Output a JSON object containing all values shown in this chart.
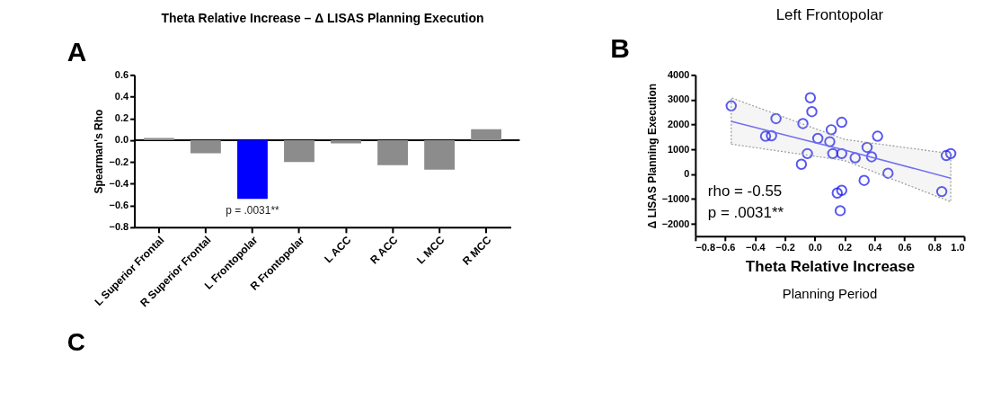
{
  "chart_data": [
    {
      "type": "bar",
      "title": "Theta Relative Increase – Δ LISAS Planning Execution",
      "ylabel": "Spearman's Rho",
      "categories": [
        "L Superior Frontal",
        "R Superior Frontal",
        "L Frontopolar",
        "R Frontopolar",
        "L ACC",
        "R ACC",
        "L MCC",
        "R MCC"
      ],
      "values": [
        0.02,
        -0.12,
        -0.54,
        -0.2,
        -0.03,
        -0.23,
        -0.27,
        0.1
      ],
      "colors": [
        "#8c8c8c",
        "#8c8c8c",
        "#0000ff",
        "#8c8c8c",
        "#8c8c8c",
        "#8c8c8c",
        "#8c8c8c",
        "#8c8c8c"
      ],
      "ylim": [
        -0.8,
        0.6
      ],
      "yticks": [
        -0.8,
        -0.6,
        -0.4,
        -0.2,
        {
          "value": 0,
          "label": "0.0"
        },
        0.2,
        0.4,
        0.6
      ],
      "ref_lines": [
        {
          "axis": "y",
          "value": 0,
          "color": "#000000"
        }
      ],
      "annotations": [
        "A",
        {
          "text": "p = .0031**",
          "x": "L Frontopolar",
          "y": -0.54
        },
        "C"
      ],
      "grid": false
    },
    {
      "type": "scatter",
      "title": "Left Frontopolar",
      "xlabel": "Theta Relative Increase",
      "ylabel": "Δ LISAS Planning Execution",
      "series": [
        {
          "type": "scatter",
          "color": "#1010ee",
          "marker": "circle",
          "x": [
            -0.56,
            -0.33,
            -0.29,
            -0.26,
            -0.08,
            -0.03,
            -0.02,
            -0.09,
            -0.05,
            0.02,
            0.11,
            0.1,
            0.18,
            0.12,
            0.18,
            0.27,
            0.33,
            0.35,
            0.38,
            0.42,
            0.49,
            0.15,
            0.18,
            0.17,
            0.85,
            0.88,
            0.91
          ],
          "values": [
            2750,
            1530,
            1550,
            2240,
            2040,
            3080,
            2520,
            400,
            830,
            1440,
            1790,
            1310,
            2090,
            830,
            830,
            660,
            -250,
            1080,
            700,
            1530,
            40,
            -760,
            -650,
            -1470,
            -700,
            750,
            830
          ]
        },
        {
          "type": "line",
          "color": "#7070f0",
          "line_style": "solid",
          "x": [
            -0.56,
            0.2,
            0.91
          ],
          "values": [
            2130,
            970,
            -160
          ],
          "lower": [
            1210,
            550,
            -1110
          ],
          "upper": [
            3080,
            1400,
            830
          ]
        }
      ],
      "xlim": [
        -0.8,
        1.0
      ],
      "xticks": [
        -0.8,
        -0.6,
        -0.4,
        -0.2,
        {
          "value": 0,
          "label": "0.0"
        },
        0.2,
        0.4,
        0.6,
        0.8,
        {
          "value": 1.0,
          "label": "1.0"
        }
      ],
      "ylim": [
        -2500,
        4000
      ],
      "yticks": [
        -2000,
        -1000,
        0,
        1000,
        2000,
        3000,
        4000
      ],
      "annotations": [
        "B",
        "rho = -0.55",
        "p = .0031**",
        "Planning Period"
      ],
      "grid": false
    }
  ]
}
